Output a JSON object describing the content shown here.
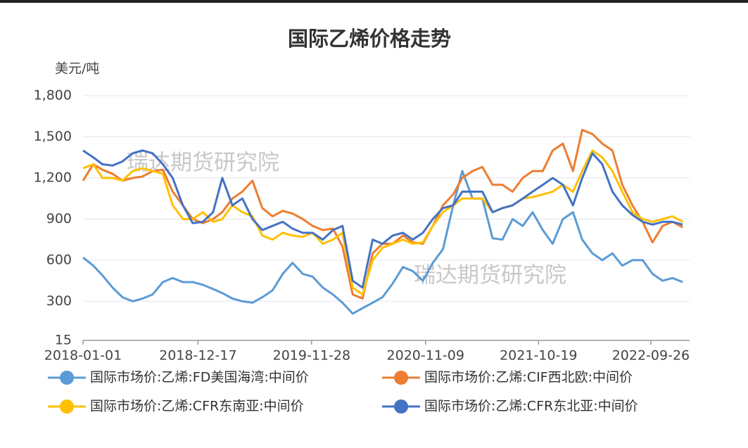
{
  "chart_data": {
    "type": "line",
    "title": "国际乙烯价格走势",
    "y_label": "美元/吨",
    "watermarks": [
      "瑞达期货研究院",
      "瑞达期货研究院"
    ],
    "x": [
      "2018-01-01",
      "2018-02-01",
      "2018-03-01",
      "2018-04-01",
      "2018-05-01",
      "2018-06-01",
      "2018-07-01",
      "2018-08-01",
      "2018-09-01",
      "2018-10-01",
      "2018-11-01",
      "2018-12-01",
      "2019-01-01",
      "2019-02-01",
      "2019-03-01",
      "2019-04-01",
      "2019-05-01",
      "2019-06-01",
      "2019-07-01",
      "2019-08-01",
      "2019-09-01",
      "2019-10-01",
      "2019-11-01",
      "2019-12-01",
      "2020-01-01",
      "2020-02-01",
      "2020-03-01",
      "2020-04-01",
      "2020-05-01",
      "2020-06-01",
      "2020-07-01",
      "2020-08-01",
      "2020-09-01",
      "2020-10-01",
      "2020-11-01",
      "2020-12-01",
      "2021-01-01",
      "2021-02-01",
      "2021-03-01",
      "2021-04-01",
      "2021-05-01",
      "2021-06-01",
      "2021-07-01",
      "2021-08-01",
      "2021-09-01",
      "2021-10-01",
      "2021-11-01",
      "2021-12-01",
      "2022-01-01",
      "2022-02-01",
      "2022-03-01",
      "2022-04-01",
      "2022-05-01",
      "2022-06-01",
      "2022-07-01",
      "2022-08-01",
      "2022-09-01",
      "2022-10-01",
      "2022-11-01",
      "2022-12-01",
      "2023-01-01"
    ],
    "series": [
      {
        "name": "国际市场价:乙烯:FD美国海湾:中间价",
        "color": "#5b9bd5",
        "values": [
          620,
          560,
          490,
          400,
          330,
          300,
          320,
          350,
          440,
          470,
          440,
          440,
          420,
          390,
          360,
          320,
          300,
          290,
          330,
          380,
          500,
          580,
          500,
          480,
          400,
          350,
          290,
          210,
          250,
          290,
          330,
          430,
          550,
          520,
          450,
          580,
          680,
          1000,
          1250,
          1050,
          1050,
          760,
          750,
          900,
          850,
          950,
          820,
          720,
          900,
          950,
          750,
          650,
          600,
          650,
          560,
          600,
          600,
          500,
          450,
          470,
          440
        ]
      },
      {
        "name": "国际市场价:乙烯:CIF西北欧:中间价",
        "color": "#ed7d31",
        "values": [
          1180,
          1300,
          1260,
          1230,
          1180,
          1200,
          1210,
          1250,
          1260,
          1100,
          1000,
          900,
          870,
          900,
          950,
          1050,
          1100,
          1180,
          980,
          920,
          960,
          940,
          900,
          850,
          820,
          830,
          700,
          350,
          320,
          650,
          720,
          720,
          780,
          730,
          720,
          850,
          1000,
          1080,
          1200,
          1250,
          1280,
          1150,
          1150,
          1100,
          1200,
          1250,
          1250,
          1400,
          1450,
          1250,
          1550,
          1520,
          1450,
          1400,
          1150,
          1000,
          880,
          730,
          850,
          880,
          840
        ]
      },
      {
        "name": "国际市场价:乙烯:CFR东南亚:中间价",
        "color": "#ffc000",
        "values": [
          1270,
          1300,
          1200,
          1200,
          1180,
          1250,
          1270,
          1250,
          1230,
          1000,
          900,
          900,
          950,
          880,
          900,
          1000,
          950,
          920,
          780,
          750,
          800,
          780,
          770,
          800,
          720,
          750,
          800,
          400,
          350,
          600,
          690,
          720,
          750,
          720,
          730,
          850,
          950,
          1000,
          1050,
          1050,
          1050,
          950,
          980,
          1000,
          1050,
          1060,
          1080,
          1100,
          1150,
          1100,
          1250,
          1400,
          1350,
          1250,
          1100,
          950,
          900,
          880,
          900,
          920,
          880
        ]
      },
      {
        "name": "国际市场价:乙烯:CFR东北亚:中间价",
        "color": "#4472c4",
        "values": [
          1400,
          1350,
          1300,
          1290,
          1320,
          1380,
          1400,
          1380,
          1300,
          1200,
          1000,
          870,
          880,
          950,
          1200,
          1000,
          1050,
          900,
          820,
          850,
          880,
          830,
          800,
          800,
          750,
          820,
          850,
          450,
          400,
          750,
          720,
          780,
          800,
          750,
          800,
          900,
          980,
          1000,
          1100,
          1100,
          1100,
          950,
          980,
          1000,
          1050,
          1100,
          1150,
          1200,
          1150,
          1000,
          1200,
          1380,
          1300,
          1100,
          1000,
          930,
          880,
          860,
          880,
          880,
          860
        ]
      }
    ],
    "xlim": [
      "2018-01-01",
      "2023-01-22"
    ],
    "xticks": [
      "2018-01-01",
      "2018-12-17",
      "2019-11-28",
      "2020-11-09",
      "2021-10-19",
      "2022-09-26"
    ],
    "ylim": [
      15,
      1800
    ],
    "yticks": [
      15,
      300,
      600,
      900,
      {
        "value": 1200,
        "label": "1,200"
      },
      {
        "value": 1500,
        "label": "1,500"
      },
      {
        "value": 1800,
        "label": "1,800"
      }
    ],
    "grid": true
  }
}
